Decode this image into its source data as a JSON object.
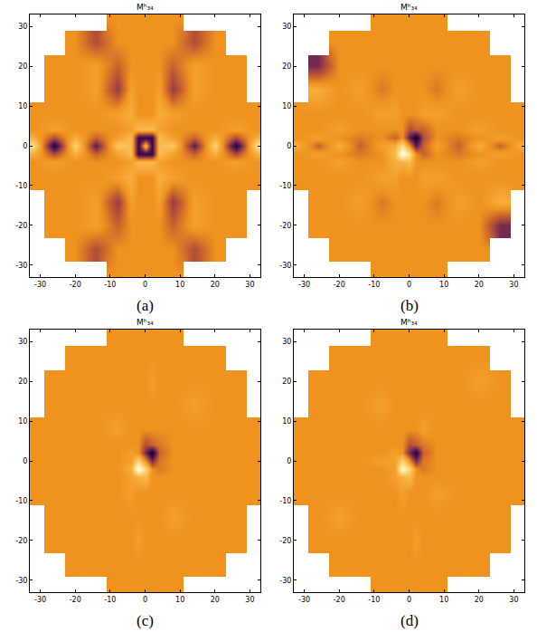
{
  "chart_data": [
    {
      "type": "heatmap",
      "title": "Mʰ₃₄",
      "label": "(a)",
      "x": [
        -32,
        -26,
        -20,
        -14,
        -8,
        -4,
        -2,
        0,
        2,
        4,
        8,
        14,
        20,
        26,
        32
      ],
      "y": [
        -32,
        -26,
        -20,
        -14,
        -8,
        -4,
        -2,
        0,
        2,
        4,
        8,
        14,
        20,
        26,
        32
      ],
      "z": [
        [
          null,
          null,
          null,
          null,
          0,
          0,
          0,
          0,
          0,
          0,
          0,
          null,
          null,
          null,
          null
        ],
        [
          null,
          null,
          0,
          -0.3,
          0,
          0,
          0,
          0,
          0,
          0,
          0,
          -0.3,
          0,
          null,
          null
        ],
        [
          null,
          0,
          0,
          0.1,
          -0.2,
          0,
          0,
          0,
          0,
          0,
          -0.2,
          0.1,
          0,
          0,
          null
        ],
        [
          null,
          0,
          0,
          0.1,
          -0.4,
          0.1,
          0,
          0,
          0,
          0.1,
          -0.4,
          0.1,
          0,
          0,
          null
        ],
        [
          0,
          0,
          0,
          0,
          0.1,
          0.2,
          0,
          0,
          0,
          0.2,
          0.1,
          0,
          0,
          0,
          0
        ],
        [
          0,
          0.1,
          0,
          0,
          0,
          0.1,
          0.3,
          0.3,
          0.3,
          0.1,
          0,
          0,
          0,
          0.1,
          0
        ],
        [
          0.2,
          -0.3,
          0.2,
          -0.2,
          0.1,
          0.3,
          -0.8,
          -0.8,
          -0.8,
          0.3,
          0.1,
          -0.2,
          0.2,
          -0.3,
          0.2
        ],
        [
          0.6,
          -0.9,
          0.5,
          -0.6,
          0.4,
          0.3,
          -0.8,
          0.3,
          -0.8,
          0.3,
          0.4,
          -0.6,
          0.5,
          -0.9,
          0.6
        ],
        [
          0.2,
          -0.3,
          0.2,
          -0.2,
          0.1,
          0.3,
          -0.8,
          -0.8,
          -0.8,
          0.3,
          0.1,
          -0.2,
          0.2,
          -0.3,
          0.2
        ],
        [
          0,
          0.1,
          0,
          0,
          0,
          0.1,
          0.3,
          0.3,
          0.3,
          0.1,
          0,
          0,
          0,
          0.1,
          0
        ],
        [
          0,
          0,
          0,
          0,
          0.1,
          0.2,
          0,
          0,
          0,
          0.2,
          0.1,
          0,
          0,
          0,
          0
        ],
        [
          null,
          0,
          0,
          0.1,
          -0.4,
          0.1,
          0,
          0,
          0,
          0.1,
          -0.4,
          0.1,
          0,
          0,
          null
        ],
        [
          null,
          0,
          0,
          0.1,
          -0.2,
          0,
          0,
          0,
          0,
          0,
          -0.2,
          0.1,
          0,
          0,
          null
        ],
        [
          null,
          null,
          0,
          -0.3,
          0,
          0,
          0,
          0,
          0,
          0,
          0,
          -0.3,
          0,
          null,
          null
        ],
        [
          null,
          null,
          null,
          null,
          0,
          0,
          0,
          0,
          0,
          0,
          0,
          null,
          null,
          null,
          null
        ]
      ],
      "zlim": [
        -1,
        1
      ],
      "xlim": [
        -33,
        33
      ],
      "ylim": [
        -33,
        33
      ],
      "xticks": [
        -30,
        -20,
        -10,
        0,
        10,
        20,
        30
      ],
      "yticks": [
        -30,
        -20,
        -10,
        0,
        10,
        20,
        30
      ]
    },
    {
      "type": "heatmap",
      "title": "Mʰ₃₄",
      "label": "(b)",
      "x": [
        -32,
        -26,
        -20,
        -14,
        -8,
        -4,
        -2,
        0,
        2,
        4,
        8,
        14,
        20,
        26,
        32
      ],
      "y": [
        -32,
        -26,
        -20,
        -14,
        -8,
        -4,
        -2,
        0,
        2,
        4,
        8,
        14,
        20,
        26,
        32
      ],
      "z": [
        [
          null,
          null,
          null,
          null,
          0,
          0,
          0,
          0,
          0,
          0,
          0,
          null,
          null,
          null,
          null
        ],
        [
          null,
          null,
          0,
          0,
          0,
          0,
          0,
          0,
          0,
          0,
          0,
          0,
          0,
          null,
          null
        ],
        [
          null,
          0,
          0,
          0,
          0,
          0,
          0,
          0,
          0,
          0,
          0,
          0,
          0,
          -0.5,
          null
        ],
        [
          null,
          0,
          0,
          0.1,
          -0.1,
          0,
          0,
          0,
          0,
          0,
          -0.1,
          0.1,
          0,
          0.2,
          null
        ],
        [
          0,
          0,
          0,
          0,
          0.1,
          0.1,
          0,
          0,
          0,
          0.1,
          0.1,
          0,
          0,
          0,
          0
        ],
        [
          0,
          0,
          0.1,
          0,
          0,
          0.2,
          0.2,
          0.3,
          0,
          0,
          0,
          0,
          0.1,
          0,
          0
        ],
        [
          0,
          0.1,
          0,
          -0.1,
          0,
          0.3,
          1,
          0.6,
          0,
          -0.2,
          0,
          -0.1,
          0,
          0.1,
          0
        ],
        [
          0.2,
          -0.2,
          0.2,
          -0.2,
          0.1,
          0.2,
          0.6,
          0,
          -0.6,
          -0.2,
          0.1,
          -0.2,
          0.2,
          -0.2,
          0.2
        ],
        [
          0,
          0.1,
          0,
          -0.1,
          0,
          -0.2,
          0,
          -0.6,
          -1,
          -0.3,
          0,
          -0.1,
          0,
          0.1,
          0
        ],
        [
          0,
          0,
          0.1,
          0,
          0,
          0,
          0,
          -0.3,
          -0.2,
          -0.2,
          0,
          0,
          0.1,
          0,
          0
        ],
        [
          0,
          0,
          0,
          0,
          0.1,
          0.1,
          0,
          0,
          0,
          0.1,
          0.1,
          0,
          0,
          0,
          0
        ],
        [
          null,
          0.2,
          0,
          0.1,
          -0.1,
          0,
          0,
          0,
          0,
          0,
          -0.1,
          0.1,
          0,
          0,
          null
        ],
        [
          null,
          -0.5,
          0,
          0,
          0,
          0,
          0,
          0,
          0,
          0,
          0,
          0,
          0,
          0,
          null
        ],
        [
          null,
          null,
          0,
          0,
          0,
          0,
          0,
          0,
          0,
          0,
          0,
          0,
          0,
          null,
          null
        ],
        [
          null,
          null,
          null,
          null,
          0,
          0,
          0,
          0,
          0,
          0,
          0,
          null,
          null,
          null,
          null
        ]
      ],
      "zlim": [
        -1,
        1
      ],
      "xlim": [
        -33,
        33
      ],
      "ylim": [
        -33,
        33
      ],
      "xticks": [
        -30,
        -20,
        -10,
        0,
        10,
        20,
        30
      ],
      "yticks": [
        -30,
        -20,
        -10,
        0,
        10,
        20,
        30
      ]
    },
    {
      "type": "heatmap",
      "title": "Mʰ₃₄",
      "label": "(c)",
      "x": [
        -32,
        -26,
        -20,
        -14,
        -8,
        -4,
        -2,
        0,
        2,
        4,
        8,
        14,
        20,
        26,
        32
      ],
      "y": [
        -32,
        -26,
        -20,
        -14,
        -8,
        -4,
        -2,
        0,
        2,
        4,
        8,
        14,
        20,
        26,
        32
      ],
      "z": [
        [
          null,
          null,
          null,
          null,
          0,
          0,
          0,
          0,
          0,
          0,
          0,
          null,
          null,
          null,
          null
        ],
        [
          null,
          null,
          0,
          0,
          0,
          0,
          0,
          0,
          0,
          0,
          0,
          0,
          0,
          null,
          null
        ],
        [
          null,
          0,
          0,
          0,
          0,
          0,
          0.1,
          0,
          0,
          0,
          0,
          0,
          0,
          0,
          null
        ],
        [
          null,
          0,
          0,
          0,
          0,
          0,
          0,
          0,
          0,
          0,
          0.1,
          0,
          0,
          0,
          null
        ],
        [
          0,
          0,
          0,
          0,
          0,
          0.1,
          0,
          0,
          0,
          0,
          0,
          0,
          0,
          0,
          0
        ],
        [
          0,
          0,
          0,
          0,
          0,
          0.1,
          0.2,
          0.3,
          0,
          0,
          0,
          0,
          0,
          0,
          0
        ],
        [
          0,
          0,
          0,
          0,
          0,
          0.2,
          1,
          0.5,
          0,
          -0.1,
          0,
          0,
          0,
          0,
          0
        ],
        [
          0,
          0,
          0,
          0,
          0,
          0.1,
          0.5,
          0,
          -0.5,
          -0.1,
          0,
          0,
          0,
          0,
          0
        ],
        [
          0,
          0,
          0,
          0,
          0,
          0.1,
          0,
          -0.5,
          -1,
          -0.2,
          0,
          0,
          0,
          0,
          0
        ],
        [
          0,
          0,
          0,
          0,
          0,
          0,
          0,
          -0.3,
          -0.2,
          -0.1,
          0,
          0,
          0,
          0,
          0
        ],
        [
          0,
          0,
          0,
          0,
          0.1,
          0,
          0,
          0,
          0,
          0,
          0,
          0,
          0,
          0,
          0
        ],
        [
          null,
          0,
          0,
          0,
          0,
          0,
          0,
          0,
          0,
          0,
          0,
          0.1,
          0,
          0,
          null
        ],
        [
          null,
          0,
          0,
          0,
          0,
          0,
          0,
          0,
          0.1,
          0,
          0,
          0,
          0,
          0,
          null
        ],
        [
          null,
          null,
          0,
          0,
          0,
          0,
          0,
          0,
          0,
          0,
          0,
          0,
          0,
          null,
          null
        ],
        [
          null,
          null,
          null,
          null,
          0,
          0,
          0,
          0,
          0,
          0,
          0,
          null,
          null,
          null,
          null
        ]
      ],
      "zlim": [
        -1,
        1
      ],
      "xlim": [
        -33,
        33
      ],
      "ylim": [
        -33,
        33
      ],
      "xticks": [
        -30,
        -20,
        -10,
        0,
        10,
        20,
        30
      ],
      "yticks": [
        -30,
        -20,
        -10,
        0,
        10,
        20,
        30
      ]
    },
    {
      "type": "heatmap",
      "title": "Mʰ₃₄",
      "label": "(d)",
      "x": [
        -32,
        -26,
        -20,
        -14,
        -8,
        -4,
        -2,
        0,
        2,
        4,
        8,
        14,
        20,
        26,
        32
      ],
      "y": [
        -32,
        -26,
        -20,
        -14,
        -8,
        -4,
        -2,
        0,
        2,
        4,
        8,
        14,
        20,
        26,
        32
      ],
      "z": [
        [
          null,
          null,
          null,
          null,
          0,
          0,
          0,
          0,
          0,
          0,
          0,
          null,
          null,
          null,
          null
        ],
        [
          null,
          null,
          0,
          0,
          0,
          0,
          0,
          0,
          0,
          0,
          0,
          0,
          0,
          null,
          null
        ],
        [
          null,
          0,
          0,
          0,
          0,
          0,
          0,
          0,
          0.1,
          0,
          0,
          0,
          0,
          0,
          null
        ],
        [
          null,
          0,
          0.1,
          0,
          0,
          0,
          0,
          0,
          0,
          0,
          0,
          0,
          0,
          0,
          null
        ],
        [
          0,
          0,
          0,
          0,
          0,
          0,
          0.1,
          0,
          0,
          0,
          0.1,
          0,
          0,
          0,
          0
        ],
        [
          0,
          0,
          0,
          0,
          0,
          0.1,
          0.2,
          0.3,
          0,
          0,
          0,
          0,
          0,
          0,
          0
        ],
        [
          0,
          0,
          0,
          0,
          0,
          0.1,
          0.9,
          0.5,
          0,
          -0.1,
          0,
          0,
          0,
          0,
          0
        ],
        [
          0,
          0,
          0,
          0,
          0.1,
          0.1,
          0.5,
          0,
          -0.5,
          -0.1,
          0,
          0,
          0,
          0,
          0
        ],
        [
          0,
          0,
          0,
          0,
          0,
          0.1,
          0,
          -0.5,
          -0.9,
          -0.2,
          0,
          0,
          0,
          0,
          0
        ],
        [
          0,
          0,
          0,
          0,
          0,
          0,
          0,
          -0.3,
          -0.2,
          -0.1,
          0,
          0,
          0,
          0,
          0
        ],
        [
          0,
          0,
          0,
          0,
          0,
          0,
          0,
          0,
          0,
          0.1,
          0,
          0,
          0,
          0,
          0
        ],
        [
          null,
          0,
          0,
          0,
          0.1,
          0,
          0,
          0,
          0,
          0,
          0,
          0,
          0,
          0,
          null
        ],
        [
          null,
          0,
          0,
          0,
          0,
          0,
          0,
          0,
          0,
          0,
          0,
          0,
          0.1,
          0,
          null
        ],
        [
          null,
          null,
          0,
          0,
          0,
          0,
          0,
          0,
          0,
          0,
          0,
          0,
          0,
          null,
          null
        ],
        [
          null,
          null,
          null,
          null,
          0,
          0,
          0,
          0,
          0,
          0,
          0,
          null,
          null,
          null,
          null
        ]
      ],
      "zlim": [
        -1,
        1
      ],
      "xlim": [
        -33,
        33
      ],
      "ylim": [
        -33,
        33
      ],
      "xticks": [
        -30,
        -20,
        -10,
        0,
        10,
        20,
        30
      ],
      "yticks": [
        -30,
        -20,
        -10,
        0,
        10,
        20,
        30
      ]
    }
  ]
}
